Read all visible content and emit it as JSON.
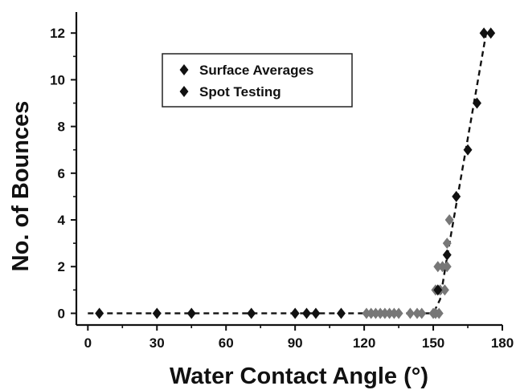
{
  "chart_data": {
    "type": "scatter",
    "xlabel": "Water Contact Angle (°)",
    "ylabel": "No. of Bounces",
    "xlim": [
      -5,
      180
    ],
    "ylim": [
      -0.5,
      12.9
    ],
    "x_ticks": [
      0,
      30,
      60,
      90,
      120,
      150,
      180
    ],
    "y_ticks": [
      0,
      2,
      4,
      6,
      8,
      10,
      12
    ],
    "grid": false,
    "legend_position": "top-left",
    "series": [
      {
        "name": "Surface Averages",
        "marker": "diamond",
        "color": "#111111",
        "points": [
          {
            "x": 5,
            "y": 0
          },
          {
            "x": 30,
            "y": 0
          },
          {
            "x": 45,
            "y": 0
          },
          {
            "x": 71,
            "y": 0
          },
          {
            "x": 90,
            "y": 0
          },
          {
            "x": 95,
            "y": 0
          },
          {
            "x": 99,
            "y": 0
          },
          {
            "x": 110,
            "y": 0
          },
          {
            "x": 152,
            "y": 1
          },
          {
            "x": 156,
            "y": 2.5
          },
          {
            "x": 160,
            "y": 5
          },
          {
            "x": 165,
            "y": 7
          },
          {
            "x": 169,
            "y": 9
          },
          {
            "x": 172,
            "y": 12
          },
          {
            "x": 175,
            "y": 12
          }
        ]
      },
      {
        "name": "Spot Testing",
        "marker": "diamond",
        "color": "#777777",
        "points": [
          {
            "x": 121,
            "y": 0
          },
          {
            "x": 123,
            "y": 0
          },
          {
            "x": 125,
            "y": 0
          },
          {
            "x": 127,
            "y": 0
          },
          {
            "x": 129,
            "y": 0
          },
          {
            "x": 131,
            "y": 0
          },
          {
            "x": 133,
            "y": 0
          },
          {
            "x": 135,
            "y": 0
          },
          {
            "x": 140,
            "y": 0
          },
          {
            "x": 143,
            "y": 0
          },
          {
            "x": 145,
            "y": 0
          },
          {
            "x": 150,
            "y": 0
          },
          {
            "x": 151,
            "y": 0
          },
          {
            "x": 152.5,
            "y": 0
          },
          {
            "x": 151,
            "y": 1
          },
          {
            "x": 153,
            "y": 1
          },
          {
            "x": 155,
            "y": 1
          },
          {
            "x": 152,
            "y": 2
          },
          {
            "x": 154,
            "y": 2
          },
          {
            "x": 156,
            "y": 2
          },
          {
            "x": 156,
            "y": 3
          },
          {
            "x": 157,
            "y": 4
          }
        ]
      }
    ],
    "fit_line": {
      "style": "dashed",
      "color": "#111111",
      "points": [
        {
          "x": 0,
          "y": 0
        },
        {
          "x": 150,
          "y": 0
        },
        {
          "x": 153,
          "y": 0.6
        },
        {
          "x": 156,
          "y": 2.4
        },
        {
          "x": 173,
          "y": 12
        }
      ]
    }
  }
}
